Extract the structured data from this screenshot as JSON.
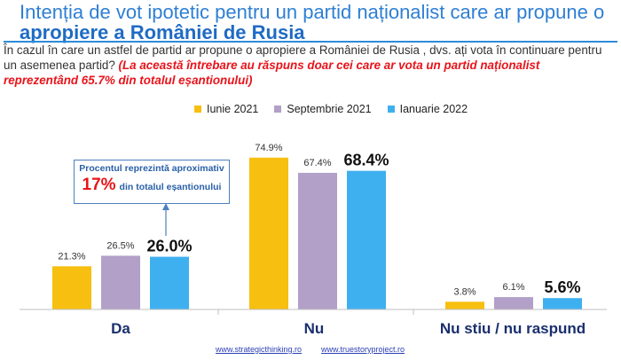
{
  "header": {
    "title_part1": "Intenția de vot ipotetic pentru un partid naționalist care ar propune o ",
    "title_highlight": "apropiere a României de Rusia",
    "question_text": "În cazul în care un astfel de partid ar propune o apropiere a României de Rusia , dvs. ați vota în continuare pentru un asemenea partid? ",
    "question_note": "(La această întrebare au răspuns doar cei care ar vota un partid naționalist reprezentând 65.7% din totalul eșantionului)"
  },
  "annotation": {
    "line1": "Procentul reprezintă aproximativ",
    "big": "17%",
    "line2_rest": "din totalul eșantionului"
  },
  "footer": {
    "link1": "www.strategicthinking.ro",
    "link2": "www.truestoryproject.ro"
  },
  "colors": {
    "series1": "#f7bf10",
    "series2": "#b2a0c8",
    "series3": "#3fb0ef",
    "title": "#2e7fd4",
    "note": "#e8141b"
  },
  "chart_data": {
    "type": "bar",
    "categories": [
      "Da",
      "Nu",
      "Nu stiu / nu raspund"
    ],
    "series": [
      {
        "name": "Iunie 2021",
        "values": [
          21.3,
          74.9,
          3.8
        ],
        "labels": [
          "21.3%",
          "74.9%",
          "3.8%"
        ]
      },
      {
        "name": "Septembrie 2021",
        "values": [
          26.5,
          67.4,
          6.1
        ],
        "labels": [
          "26.5%",
          "67.4%",
          "6.1%"
        ]
      },
      {
        "name": "Ianuarie 2022",
        "values": [
          26.0,
          68.4,
          5.6
        ],
        "labels": [
          "26.0%",
          "68.4%",
          "5.6%"
        ]
      }
    ],
    "legend_position": "top",
    "grid": false
  }
}
